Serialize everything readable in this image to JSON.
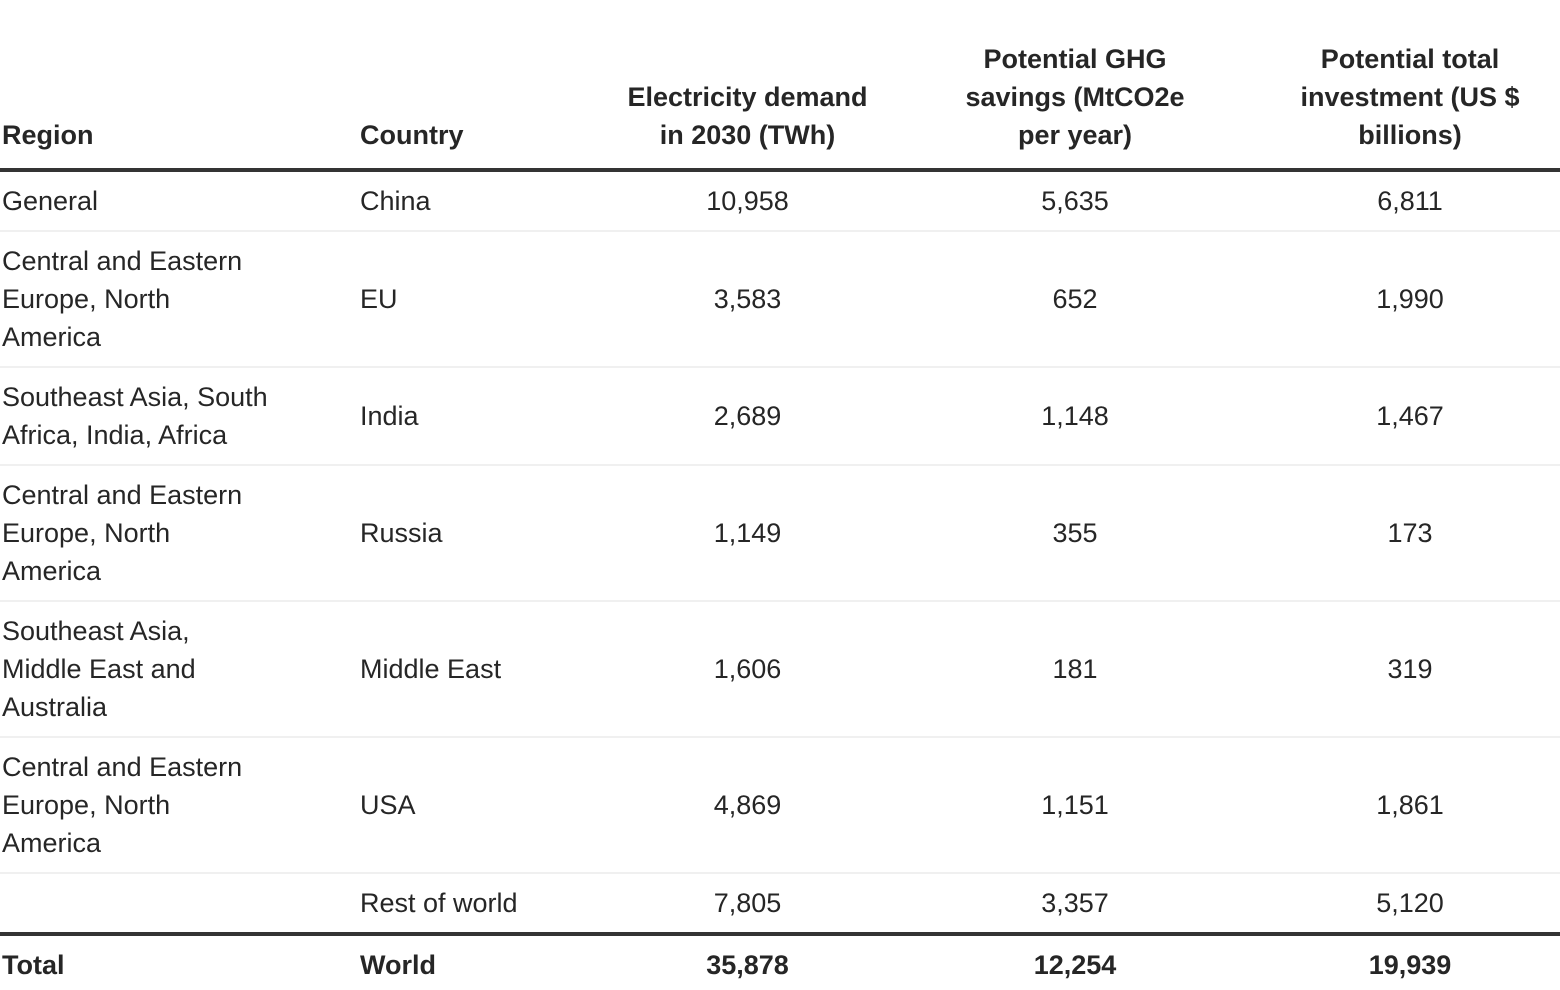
{
  "chart_data": {
    "type": "table",
    "title": "",
    "columns": [
      "Region",
      "Country",
      "Electricity demand in 2030 (TWh)",
      "Potential GHG savings (MtCO2e per year)",
      "Potential total investment (US $ billions)"
    ],
    "rows": [
      {
        "region": "General",
        "country": "China",
        "electricity_demand_2030_twh": 10958,
        "ghg_savings_mtco2e_per_year": 5635,
        "total_investment_usd_billions": 6811
      },
      {
        "region": "Central and Eastern Europe, North America",
        "country": "EU",
        "electricity_demand_2030_twh": 3583,
        "ghg_savings_mtco2e_per_year": 652,
        "total_investment_usd_billions": 1990
      },
      {
        "region": "Southeast Asia, South Africa, India, Africa",
        "country": "India",
        "electricity_demand_2030_twh": 2689,
        "ghg_savings_mtco2e_per_year": 1148,
        "total_investment_usd_billions": 1467
      },
      {
        "region": "Central and Eastern Europe, North America",
        "country": "Russia",
        "electricity_demand_2030_twh": 1149,
        "ghg_savings_mtco2e_per_year": 355,
        "total_investment_usd_billions": 173
      },
      {
        "region": "Southeast Asia, Middle East and Australia",
        "country": "Middle East",
        "electricity_demand_2030_twh": 1606,
        "ghg_savings_mtco2e_per_year": 181,
        "total_investment_usd_billions": 319
      },
      {
        "region": "Central and Eastern Europe, North America",
        "country": "USA",
        "electricity_demand_2030_twh": 4869,
        "ghg_savings_mtco2e_per_year": 1151,
        "total_investment_usd_billions": 1861
      },
      {
        "region": "",
        "country": "Rest of world",
        "electricity_demand_2030_twh": 7805,
        "ghg_savings_mtco2e_per_year": 3357,
        "total_investment_usd_billions": 5120
      },
      {
        "region": "Total",
        "country": "World",
        "electricity_demand_2030_twh": 35878,
        "ghg_savings_mtco2e_per_year": 12254,
        "total_investment_usd_billions": 19939
      }
    ]
  },
  "table": {
    "header": {
      "region": "Region",
      "country": "Country",
      "demand": "Electricity demand\nin 2030 (TWh)",
      "ghg": "Potential GHG\nsavings (MtCO2e\nper year)",
      "investment": "Potential total\ninvestment (US $\nbillions)"
    },
    "rows": [
      {
        "region": "General",
        "country": "China",
        "demand": "10,958",
        "ghg": "5,635",
        "investment": "6,811"
      },
      {
        "region": "Central and Eastern\nEurope, North\nAmerica",
        "country": "EU",
        "demand": "3,583",
        "ghg": "652",
        "investment": "1,990"
      },
      {
        "region": "Southeast Asia, South\nAfrica, India, Africa",
        "country": "India",
        "demand": "2,689",
        "ghg": "1,148",
        "investment": "1,467"
      },
      {
        "region": "Central and Eastern\nEurope, North\nAmerica",
        "country": "Russia",
        "demand": "1,149",
        "ghg": "355",
        "investment": "173"
      },
      {
        "region": "Southeast Asia,\nMiddle East and\nAustralia",
        "country": "Middle East",
        "demand": "1,606",
        "ghg": "181",
        "investment": "319"
      },
      {
        "region": "Central and Eastern\nEurope, North\nAmerica",
        "country": "USA",
        "demand": "4,869",
        "ghg": "1,151",
        "investment": "1,861"
      },
      {
        "region": "",
        "country": "Rest of world",
        "demand": "7,805",
        "ghg": "3,357",
        "investment": "5,120"
      }
    ],
    "total": {
      "region": "Total",
      "country": "World",
      "demand": "35,878",
      "ghg": "12,254",
      "investment": "19,939"
    }
  },
  "colors": {
    "background": "#ffffff",
    "text": "#262626",
    "heavy_rule": "#343434",
    "light_rule": "#f0f0f0"
  }
}
